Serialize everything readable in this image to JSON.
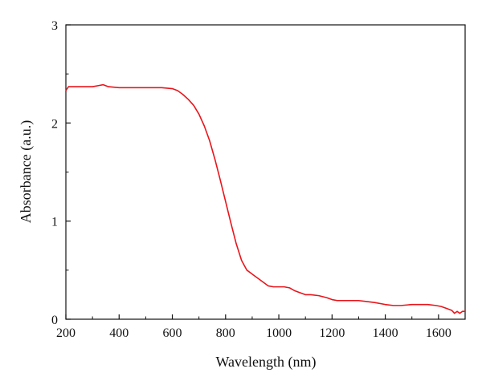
{
  "chart_data": {
    "type": "line",
    "title": "",
    "xlabel": "Wavelength (nm)",
    "ylabel": "Absorbance (a.u.)",
    "xlim": [
      200,
      1700
    ],
    "ylim": [
      0,
      3
    ],
    "xticks": [
      200,
      400,
      600,
      800,
      1000,
      1200,
      1400,
      1600
    ],
    "yticks": [
      0,
      1,
      2,
      3
    ],
    "xtick_labels": [
      "200",
      "400",
      "600",
      "800",
      "1000",
      "1200",
      "1400",
      "1600"
    ],
    "ytick_labels": [
      "0",
      "1",
      "2",
      "3"
    ],
    "grid": false,
    "legend": "none",
    "series": [
      {
        "color": "#e8151b",
        "x": [
          200,
          210,
          250,
          300,
          320,
          340,
          360,
          400,
          500,
          560,
          600,
          620,
          640,
          660,
          680,
          700,
          720,
          740,
          760,
          780,
          800,
          820,
          840,
          860,
          880,
          900,
          920,
          940,
          960,
          980,
          1000,
          1020,
          1040,
          1060,
          1080,
          1100,
          1120,
          1150,
          1180,
          1200,
          1220,
          1250,
          1300,
          1330,
          1360,
          1400,
          1430,
          1460,
          1500,
          1540,
          1560,
          1590,
          1610,
          1630,
          1650,
          1660,
          1670,
          1680,
          1690,
          1700
        ],
        "y": [
          2.33,
          2.37,
          2.37,
          2.37,
          2.38,
          2.39,
          2.37,
          2.36,
          2.36,
          2.36,
          2.35,
          2.33,
          2.29,
          2.24,
          2.18,
          2.09,
          1.97,
          1.82,
          1.63,
          1.42,
          1.2,
          0.98,
          0.77,
          0.6,
          0.5,
          0.46,
          0.42,
          0.38,
          0.34,
          0.33,
          0.33,
          0.33,
          0.32,
          0.29,
          0.27,
          0.25,
          0.25,
          0.24,
          0.22,
          0.2,
          0.19,
          0.19,
          0.19,
          0.18,
          0.17,
          0.15,
          0.14,
          0.14,
          0.15,
          0.15,
          0.15,
          0.14,
          0.13,
          0.11,
          0.09,
          0.06,
          0.08,
          0.06,
          0.08,
          0.08
        ]
      }
    ]
  }
}
